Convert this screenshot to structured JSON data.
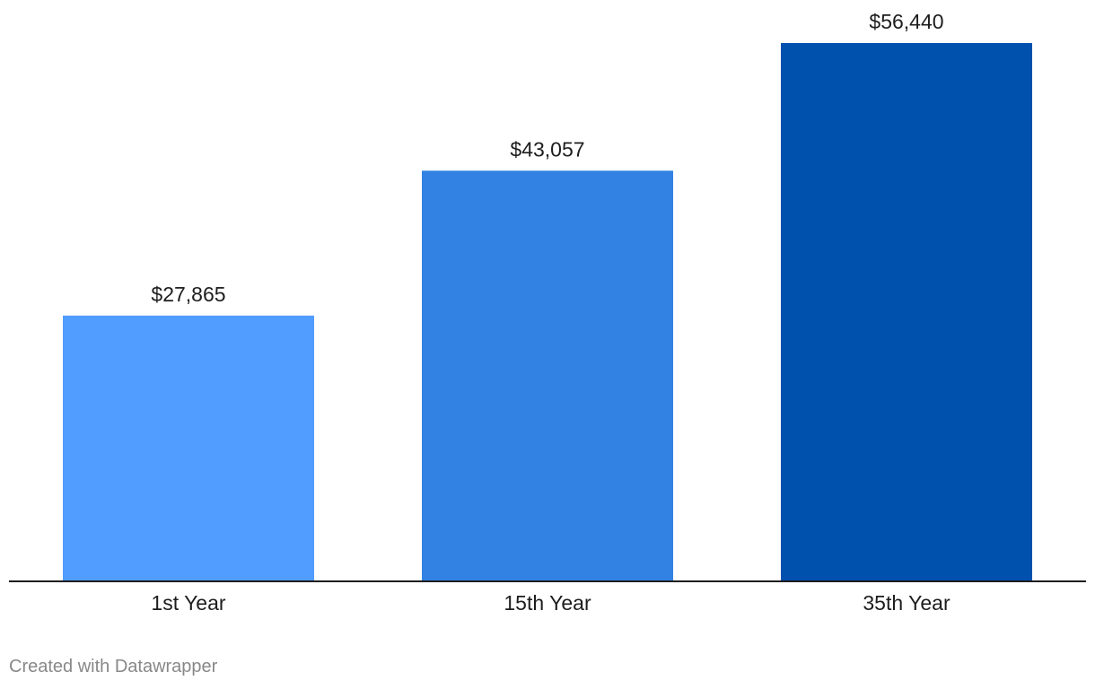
{
  "chart_data": {
    "type": "bar",
    "categories": [
      "1st Year",
      "15th Year",
      "35th Year"
    ],
    "values": [
      27865,
      43057,
      56440
    ],
    "value_labels": [
      "$27,865",
      "$43,057",
      "$56,440"
    ],
    "colors": [
      "#519cff",
      "#3182e2",
      "#0050ae"
    ],
    "ylim": [
      0,
      56440
    ],
    "baseline_color": "#1d1d1d",
    "grid": false,
    "title": "",
    "xlabel": "",
    "ylabel": ""
  },
  "footer": {
    "credit": "Created with Datawrapper"
  }
}
